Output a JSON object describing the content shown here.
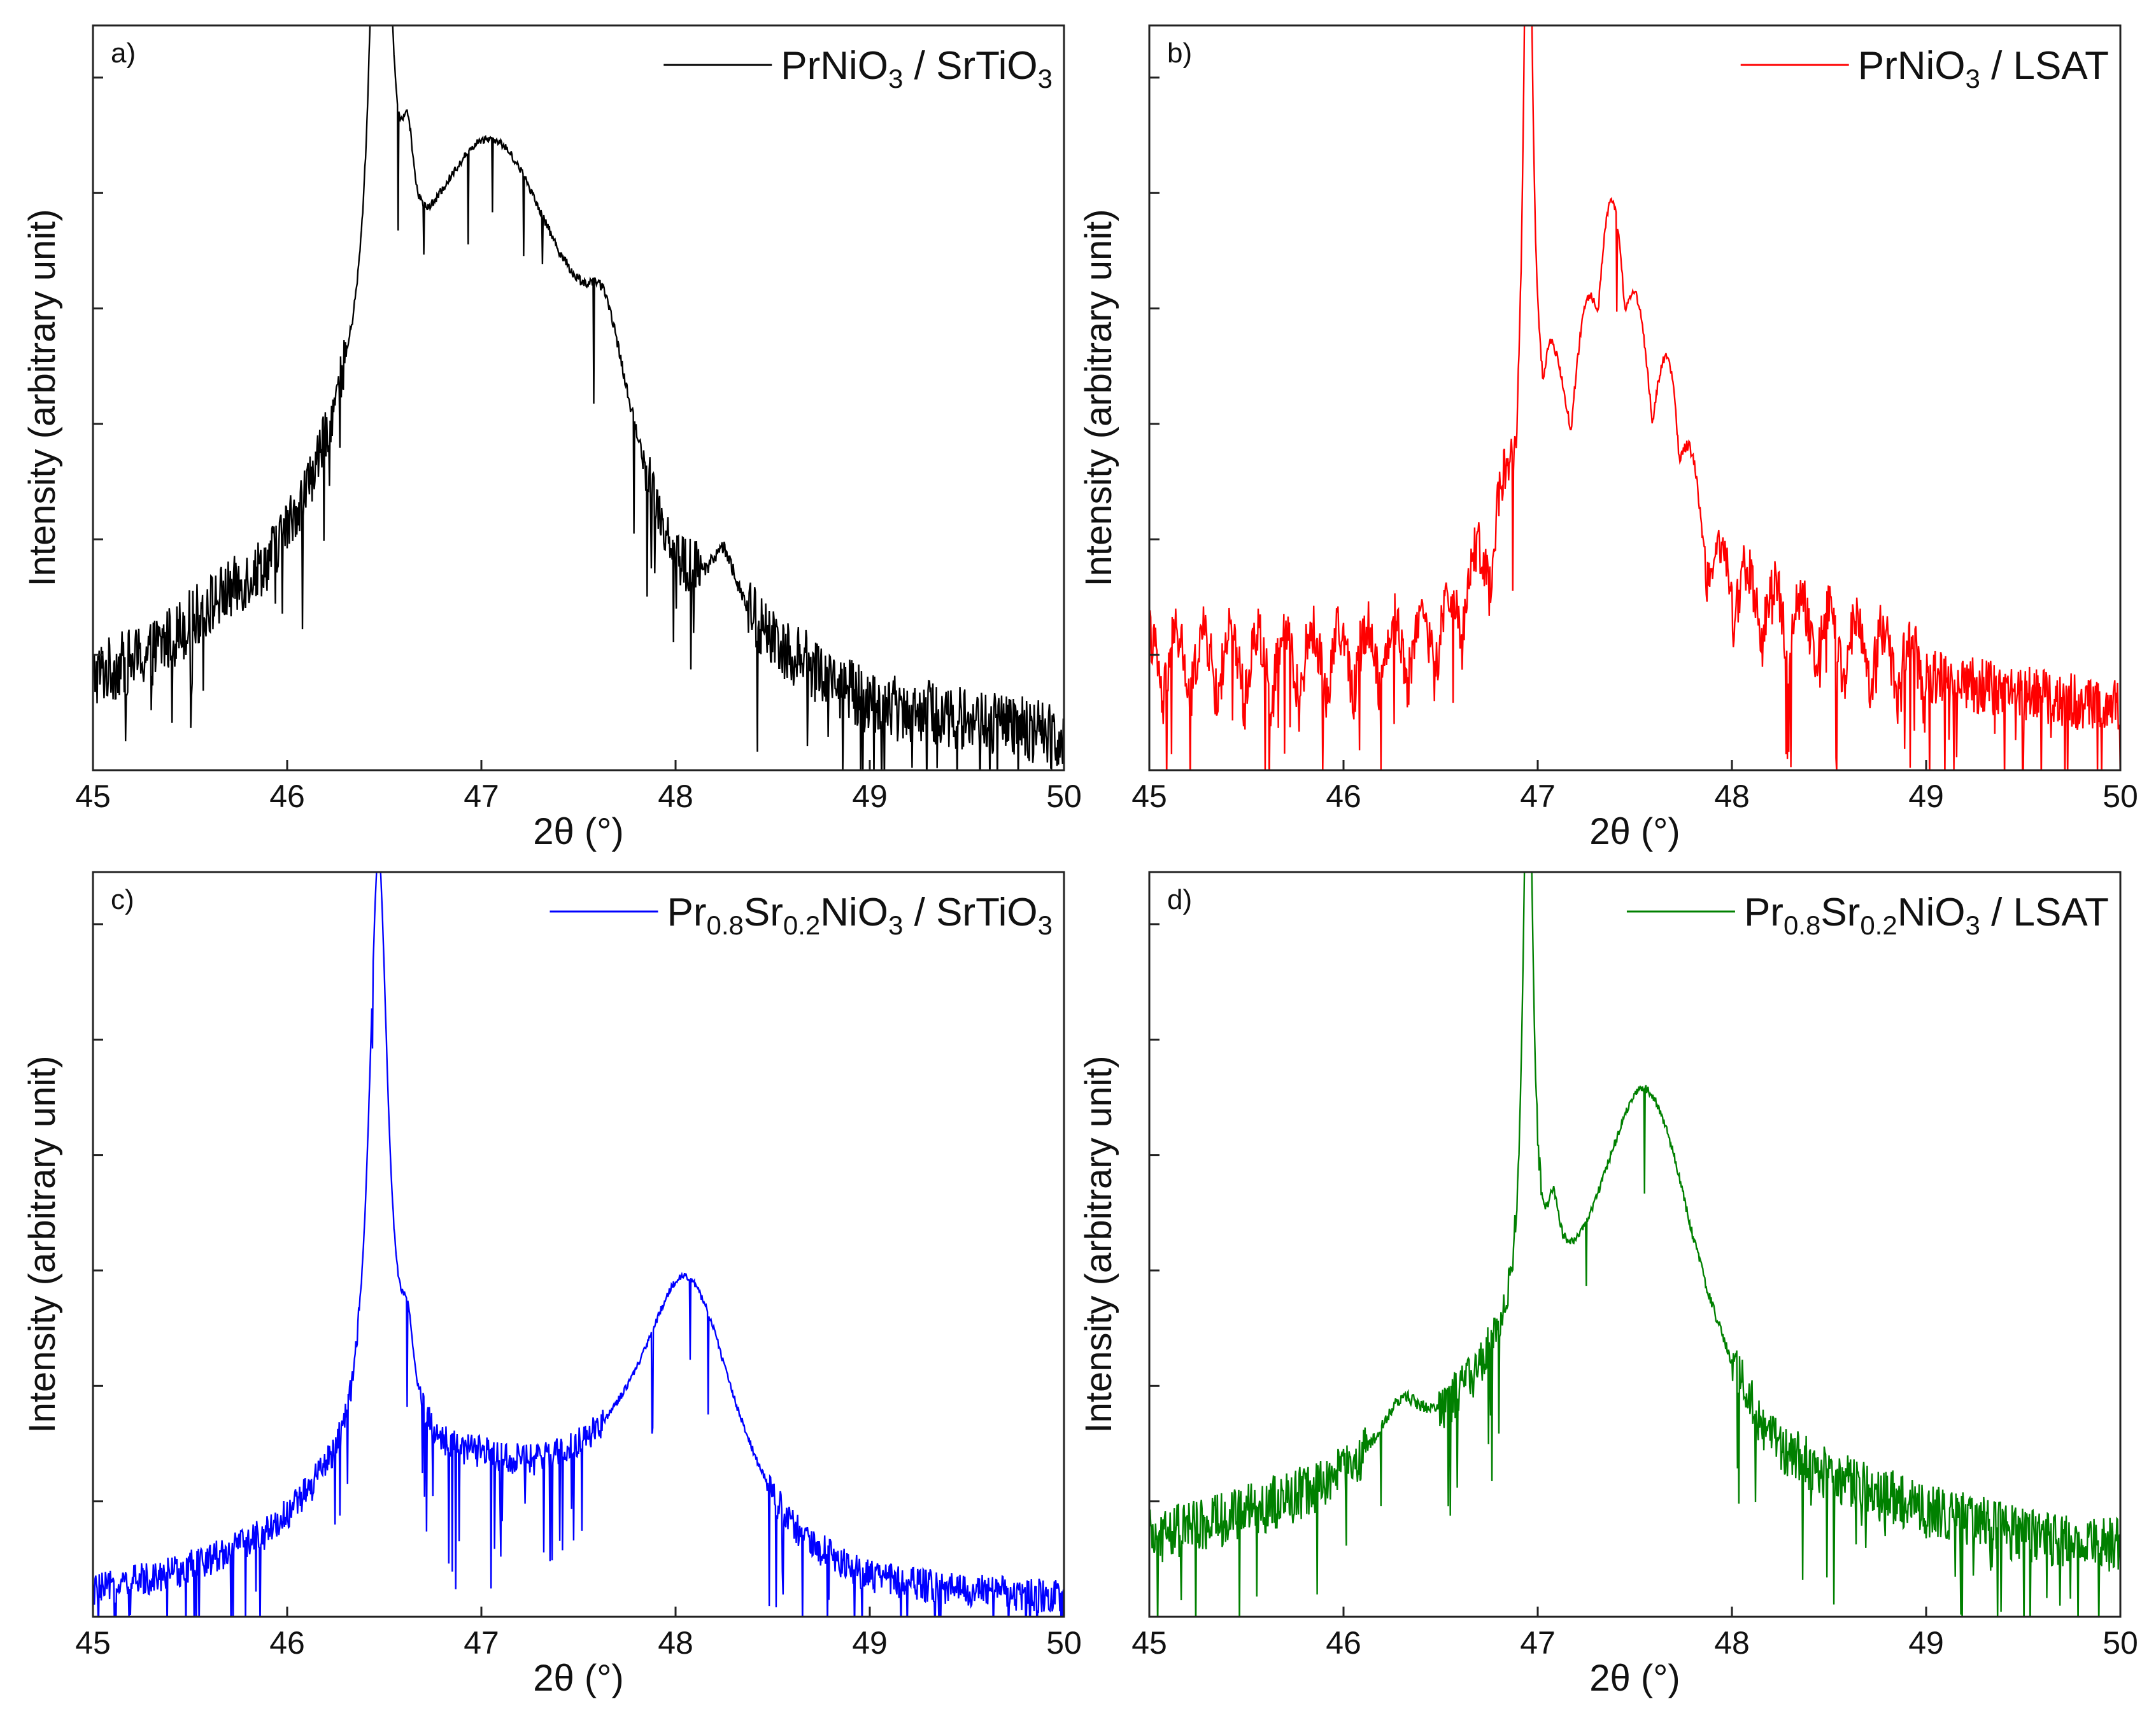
{
  "figure": {
    "panels": [
      "a",
      "b",
      "c",
      "d"
    ]
  },
  "chart_data": [
    {
      "type": "line",
      "panel_label": "a)",
      "legend": {
        "segments": [
          {
            "t": "PrNiO"
          },
          {
            "t": "3",
            "sub": true
          },
          {
            "t": " / SrTiO"
          },
          {
            "t": "3",
            "sub": true
          }
        ]
      },
      "color": "#000000",
      "xlabel": "2θ (°)",
      "ylabel": "Intensity (arbitrary unit)",
      "xlim": [
        45,
        50
      ],
      "ylim": [
        0,
        1
      ],
      "x_ticks": [
        "45",
        "46",
        "47",
        "48",
        "49",
        "50"
      ],
      "y_ticks": [
        0.155,
        0.31,
        0.465,
        0.62,
        0.775,
        0.93
      ],
      "peaks": [
        {
          "x": 46.48,
          "y": 1.0,
          "w": 0.05
        },
        {
          "x": 46.62,
          "y": 0.14,
          "w": 0.04
        },
        {
          "x": 47.05,
          "y": 0.46,
          "w": 0.5
        },
        {
          "x": 47.65,
          "y": 0.1,
          "w": 0.12
        },
        {
          "x": 48.25,
          "y": 0.08,
          "w": 0.08
        }
      ],
      "background": [
        [
          45.0,
          0.1
        ],
        [
          45.3,
          0.12
        ],
        [
          45.6,
          0.17
        ],
        [
          45.9,
          0.2
        ],
        [
          46.1,
          0.26
        ],
        [
          46.3,
          0.34
        ],
        [
          46.8,
          0.38
        ],
        [
          47.3,
          0.37
        ],
        [
          47.6,
          0.36
        ],
        [
          47.8,
          0.27
        ],
        [
          48.0,
          0.17
        ],
        [
          48.5,
          0.12
        ],
        [
          49.0,
          0.06
        ],
        [
          49.5,
          0.05
        ],
        [
          50.0,
          0.03
        ]
      ],
      "noise": 0.06,
      "drop_prob": 0.05
    },
    {
      "type": "line",
      "panel_label": "b)",
      "legend": {
        "segments": [
          {
            "t": "PrNiO"
          },
          {
            "t": "3",
            "sub": true
          },
          {
            "t": " / LSAT"
          }
        ]
      },
      "color": "#ff0000",
      "xlabel": "2θ (°)",
      "ylabel": "Intensity (arbitrary unit)",
      "xlim": [
        45,
        50
      ],
      "ylim": [
        0,
        1
      ],
      "x_ticks": [
        "45",
        "46",
        "47",
        "48",
        "49",
        "50"
      ],
      "y_ticks": [
        0.155,
        0.31,
        0.465,
        0.62,
        0.775,
        0.93
      ],
      "peaks": [
        {
          "x": 46.95,
          "y": 0.92,
          "w": 0.025
        },
        {
          "x": 47.05,
          "y": 0.12,
          "w": 0.05
        },
        {
          "x": 47.38,
          "y": 0.4,
          "w": 0.18
        },
        {
          "x": 47.7,
          "y": 0.1,
          "w": 0.1
        }
      ],
      "background": [
        [
          45.0,
          0.13
        ],
        [
          46.0,
          0.13
        ],
        [
          46.5,
          0.15
        ],
        [
          46.7,
          0.22
        ],
        [
          46.9,
          0.3
        ],
        [
          47.2,
          0.3
        ],
        [
          47.7,
          0.3
        ],
        [
          47.9,
          0.21
        ],
        [
          48.5,
          0.15
        ],
        [
          49.0,
          0.12
        ],
        [
          50.0,
          0.08
        ]
      ],
      "fringes": {
        "amp": 0.1,
        "period": 0.14,
        "xmax": 49.0
      },
      "noise": 0.05,
      "drop_prob": 0.04
    },
    {
      "type": "line",
      "panel_label": "c)",
      "legend": {
        "segments": [
          {
            "t": "Pr"
          },
          {
            "t": "0.8",
            "sub": true
          },
          {
            "t": "Sr"
          },
          {
            "t": "0.2",
            "sub": true
          },
          {
            "t": "NiO"
          },
          {
            "t": "3",
            "sub": true
          },
          {
            "t": " / SrTiO"
          },
          {
            "t": "3",
            "sub": true
          }
        ]
      },
      "color": "#0000ff",
      "xlabel": "2θ (°)",
      "ylabel": "Intensity (arbitrary unit)",
      "xlim": [
        45,
        50
      ],
      "ylim": [
        0,
        1
      ],
      "x_ticks": [
        "45",
        "46",
        "47",
        "48",
        "49",
        "50"
      ],
      "y_ticks": [
        0.155,
        0.31,
        0.465,
        0.62,
        0.775,
        0.93
      ],
      "peaks": [
        {
          "x": 46.47,
          "y": 0.82,
          "w": 0.06
        },
        {
          "x": 46.62,
          "y": 0.1,
          "w": 0.04
        },
        {
          "x": 48.05,
          "y": 0.3,
          "w": 0.28
        }
      ],
      "background": [
        [
          45.0,
          0.03
        ],
        [
          45.5,
          0.06
        ],
        [
          45.9,
          0.1
        ],
        [
          46.2,
          0.16
        ],
        [
          46.6,
          0.2
        ],
        [
          47.0,
          0.19
        ],
        [
          47.3,
          0.17
        ],
        [
          47.7,
          0.17
        ],
        [
          48.2,
          0.15
        ],
        [
          48.6,
          0.06
        ],
        [
          49.0,
          0.03
        ],
        [
          50.0,
          0.02
        ]
      ],
      "noise": 0.03,
      "drop_prob": 0.06
    },
    {
      "type": "line",
      "panel_label": "d)",
      "legend": {
        "segments": [
          {
            "t": "Pr"
          },
          {
            "t": "0.8",
            "sub": true
          },
          {
            "t": "Sr"
          },
          {
            "t": "0.2",
            "sub": true
          },
          {
            "t": "NiO"
          },
          {
            "t": "3",
            "sub": true
          },
          {
            "t": " / LSAT"
          }
        ]
      },
      "color": "#008000",
      "xlabel": "2θ (°)",
      "ylabel": "Intensity (arbitrary unit)",
      "xlim": [
        45,
        50
      ],
      "ylim": [
        0,
        1
      ],
      "x_ticks": [
        "45",
        "46",
        "47",
        "48",
        "49",
        "50"
      ],
      "y_ticks": [
        0.155,
        0.31,
        0.465,
        0.62,
        0.775,
        0.93
      ],
      "peaks": [
        {
          "x": 46.95,
          "y": 0.84,
          "w": 0.03
        },
        {
          "x": 47.08,
          "y": 0.1,
          "w": 0.04
        },
        {
          "x": 47.55,
          "y": 0.4,
          "w": 0.3
        },
        {
          "x": 46.3,
          "y": 0.06,
          "w": 0.12
        }
      ],
      "background": [
        [
          45.0,
          0.1
        ],
        [
          45.5,
          0.13
        ],
        [
          45.9,
          0.16
        ],
        [
          46.2,
          0.2
        ],
        [
          46.5,
          0.23
        ],
        [
          46.8,
          0.3
        ],
        [
          47.2,
          0.32
        ],
        [
          47.7,
          0.3
        ],
        [
          48.0,
          0.22
        ],
        [
          48.2,
          0.17
        ],
        [
          48.8,
          0.14
        ],
        [
          49.5,
          0.1
        ],
        [
          50.0,
          0.09
        ]
      ],
      "noise": 0.05,
      "drop_prob": 0.04
    }
  ]
}
